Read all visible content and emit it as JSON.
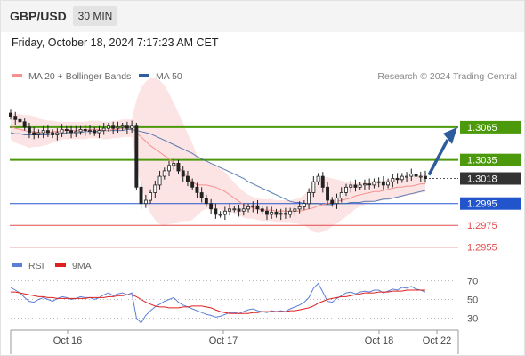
{
  "header": {
    "symbol": "GBP/USD",
    "timeframe": "30 MIN"
  },
  "datetime": "Friday, October 18, 2024 7:17:23 AM CET",
  "credit": "Research © 2024 Trading Central",
  "colors": {
    "ma20": "#f4908e",
    "ma50": "#2f5e9e",
    "resistance": "#4c9a0c",
    "support_blue": "#2255cc",
    "support_red": "#e04a4a",
    "rsi": "#5b7fd6",
    "rsi_ma": "#e02020",
    "candle": "#222222",
    "arrow": "#2c5c9c"
  },
  "chart_data": [
    {
      "type": "candlestick",
      "legend": [
        {
          "label": "MA 20 + Bollinger Bands",
          "color": "#f4908e"
        },
        {
          "label": "MA 50",
          "color": "#2f5e9e"
        }
      ],
      "ylim": [
        1.2945,
        1.31
      ],
      "x_ticks": [
        "Oct 16",
        "Oct 17",
        "Oct 18",
        "Oct 22"
      ],
      "levels": [
        {
          "value": 1.3065,
          "label": "1.3065",
          "kind": "resistance"
        },
        {
          "value": 1.3035,
          "label": "1.3035",
          "kind": "resistance"
        },
        {
          "value": 1.3018,
          "label": "1.3018",
          "kind": "current"
        },
        {
          "value": 1.2995,
          "label": "1.2995",
          "kind": "support_blue"
        },
        {
          "value": 1.2975,
          "label": "1.2975",
          "kind": "support_red"
        },
        {
          "value": 1.2955,
          "label": "1.2955",
          "kind": "support_red"
        }
      ],
      "close": [
        1.3075,
        1.3072,
        1.307,
        1.3065,
        1.306,
        1.3058,
        1.306,
        1.3062,
        1.306,
        1.3058,
        1.306,
        1.3063,
        1.3062,
        1.306,
        1.3061,
        1.3063,
        1.3062,
        1.3062,
        1.306,
        1.3062,
        1.3064,
        1.3066,
        1.3064,
        1.3065,
        1.3066,
        1.3064,
        1.3066,
        1.301,
        1.2995,
        1.2998,
        1.3005,
        1.3012,
        1.302,
        1.3025,
        1.303,
        1.3032,
        1.3025,
        1.302,
        1.3015,
        1.301,
        1.3005,
        1.3,
        1.2995,
        1.299,
        1.2985,
        1.2985,
        1.2988,
        1.299,
        1.299,
        1.2988,
        1.299,
        1.2992,
        1.2993,
        1.299,
        1.2988,
        1.2985,
        1.2987,
        1.2985,
        1.2986,
        1.2985,
        1.2988,
        1.299,
        1.2992,
        1.2995,
        1.3005,
        1.3015,
        1.302,
        1.301,
        1.2998,
        1.2995,
        1.3,
        1.3005,
        1.301,
        1.3012,
        1.301,
        1.3012,
        1.3013,
        1.3012,
        1.3015,
        1.3015,
        1.3012,
        1.3015,
        1.3018,
        1.3017,
        1.302,
        1.302,
        1.3022,
        1.302,
        1.302,
        1.3018
      ],
      "ma20": [
        1.3066,
        1.3064,
        1.3063,
        1.3062,
        1.3061,
        1.3061,
        1.306,
        1.306,
        1.306,
        1.3061,
        1.3061,
        1.3062,
        1.3062,
        1.3062,
        1.3062,
        1.3062,
        1.3062,
        1.3063,
        1.3063,
        1.3063,
        1.3062,
        1.3062,
        1.3063,
        1.3063,
        1.3064,
        1.3064,
        1.3064,
        1.306,
        1.3056,
        1.3052,
        1.3048,
        1.3045,
        1.3042,
        1.3039,
        1.3036,
        1.3032,
        1.3028,
        1.3024,
        1.3019,
        1.3015,
        1.3012,
        1.3012,
        1.3012,
        1.3011,
        1.301,
        1.3008,
        1.3006,
        1.3003,
        1.3,
        1.2997,
        1.2994,
        1.2992,
        1.2991,
        1.299,
        1.2989,
        1.2989,
        1.2989,
        1.2988,
        1.2988,
        1.2988,
        1.2988,
        1.2988,
        1.2988,
        1.2989,
        1.299,
        1.2991,
        1.2993,
        1.2994,
        1.2995,
        1.2996,
        1.2997,
        1.2998,
        1.2999,
        1.3,
        1.3002,
        1.3003,
        1.3004,
        1.3005,
        1.3006,
        1.3006,
        1.3007,
        1.3008,
        1.3009,
        1.301,
        1.301,
        1.3011,
        1.3011,
        1.3012,
        1.3013,
        1.3013
      ],
      "ma50": [
        1.306,
        1.3059,
        1.3059,
        1.3058,
        1.3058,
        1.3058,
        1.3058,
        1.3058,
        1.3058,
        1.3059,
        1.3059,
        1.3059,
        1.306,
        1.306,
        1.306,
        1.306,
        1.3061,
        1.3061,
        1.3061,
        1.3061,
        1.3062,
        1.3062,
        1.3062,
        1.3062,
        1.3062,
        1.3063,
        1.3063,
        1.3062,
        1.3061,
        1.306,
        1.3059,
        1.3057,
        1.3055,
        1.3053,
        1.3051,
        1.3049,
        1.3047,
        1.3045,
        1.3043,
        1.3041,
        1.3038,
        1.3036,
        1.3034,
        1.3032,
        1.303,
        1.3028,
        1.3026,
        1.3024,
        1.3022,
        1.302,
        1.3018,
        1.3015,
        1.3013,
        1.3011,
        1.3009,
        1.3007,
        1.3005,
        1.3003,
        1.3001,
        1.2999,
        1.2997,
        1.2996,
        1.2996,
        1.2995,
        1.2995,
        1.2995,
        1.2995,
        1.2994,
        1.2994,
        1.2994,
        1.2995,
        1.2995,
        1.2995,
        1.2996,
        1.2996,
        1.2996,
        1.2997,
        1.2997,
        1.2997,
        1.2998,
        1.2999,
        1.2999,
        1.3,
        1.3001,
        1.3002,
        1.3003,
        1.3004,
        1.3005,
        1.3006,
        1.3007
      ],
      "bb_width": [
        0.0012,
        0.0013,
        0.0014,
        0.0014,
        0.0015,
        0.0014,
        0.0013,
        0.0012,
        0.0011,
        0.001,
        0.0009,
        0.0008,
        0.0008,
        0.0008,
        0.0008,
        0.0008,
        0.0008,
        0.0008,
        0.0008,
        0.0008,
        0.0008,
        0.0008,
        0.0008,
        0.0008,
        0.0008,
        0.0008,
        0.0008,
        0.003,
        0.0045,
        0.0055,
        0.0062,
        0.0065,
        0.0066,
        0.0064,
        0.006,
        0.0055,
        0.005,
        0.0045,
        0.004,
        0.0035,
        0.0028,
        0.0024,
        0.0022,
        0.0021,
        0.002,
        0.0019,
        0.0018,
        0.0016,
        0.0014,
        0.0013,
        0.0012,
        0.0011,
        0.001,
        0.001,
        0.001,
        0.001,
        0.001,
        0.001,
        0.001,
        0.001,
        0.001,
        0.0011,
        0.0012,
        0.0014,
        0.0018,
        0.0022,
        0.0025,
        0.0025,
        0.0024,
        0.0022,
        0.002,
        0.0018,
        0.0016,
        0.0014,
        0.0012,
        0.0011,
        0.001,
        0.0009,
        0.0009,
        0.0009,
        0.0009,
        0.0009,
        0.0009,
        0.0009,
        0.0009,
        0.0008,
        0.0008,
        0.0008,
        0.0008,
        0.0008
      ],
      "forecast_target": 1.3065
    },
    {
      "type": "line",
      "legend": [
        {
          "label": "RSI",
          "color": "#5b7fd6"
        },
        {
          "label": "9MA",
          "color": "#e02020"
        }
      ],
      "ylim": [
        20,
        80
      ],
      "y_ticks": [
        "70",
        "50",
        "30"
      ],
      "rsi": [
        63,
        60,
        57,
        52,
        48,
        47,
        50,
        52,
        50,
        48,
        51,
        53,
        52,
        50,
        51,
        53,
        52,
        52,
        50,
        52,
        55,
        57,
        54,
        56,
        57,
        55,
        57,
        30,
        25,
        33,
        38,
        42,
        45,
        48,
        50,
        52,
        47,
        44,
        42,
        40,
        38,
        36,
        34,
        33,
        31,
        32,
        34,
        36,
        36,
        35,
        37,
        39,
        40,
        38,
        37,
        36,
        38,
        37,
        38,
        37,
        40,
        42,
        44,
        47,
        52,
        62,
        67,
        58,
        48,
        47,
        51,
        54,
        57,
        58,
        56,
        58,
        59,
        58,
        60,
        60,
        57,
        59,
        61,
        60,
        63,
        62,
        64,
        61,
        60,
        58
      ],
      "rsi_ma": [
        58,
        58,
        57,
        56,
        55,
        54,
        53,
        53,
        52,
        52,
        51,
        51,
        51,
        51,
        51,
        51,
        51,
        52,
        52,
        52,
        52,
        53,
        53,
        54,
        54,
        55,
        55,
        53,
        50,
        47,
        45,
        43,
        42,
        42,
        41,
        41,
        41,
        42,
        42,
        43,
        43,
        43,
        42,
        41,
        39,
        37,
        36,
        35,
        35,
        35,
        35,
        35,
        36,
        36,
        37,
        37,
        37,
        37,
        37,
        37,
        38,
        38,
        39,
        40,
        41,
        43,
        46,
        48,
        50,
        51,
        52,
        53,
        53,
        54,
        55,
        56,
        57,
        57,
        57,
        58,
        58,
        58,
        59,
        59,
        59,
        60,
        60,
        60,
        60,
        60
      ]
    }
  ]
}
